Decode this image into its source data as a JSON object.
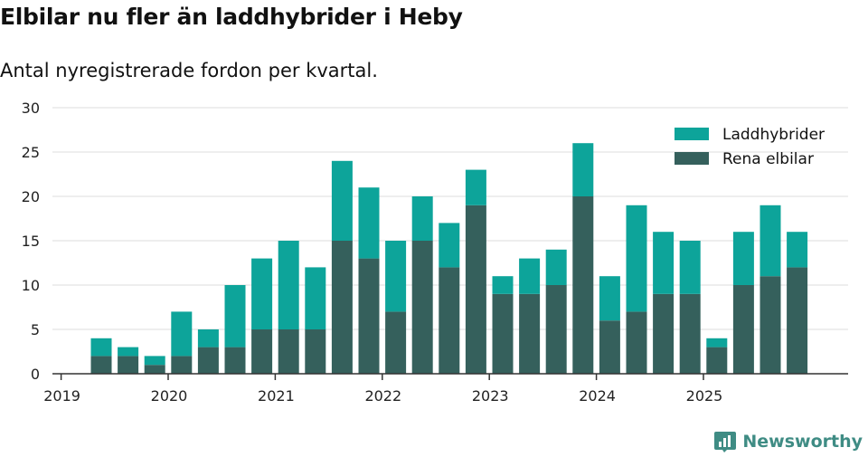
{
  "header": {
    "title": "Elbilar nu fler än laddhybrider i Heby",
    "subtitle": "Antal nyregistrerade fordon per kvartal."
  },
  "brand": {
    "name": "Newsworthy",
    "icon": "newsworthy-logo-icon",
    "color": "#3f8c84"
  },
  "chart_data": {
    "type": "bar",
    "stacked": true,
    "categories": [
      "2019 Q2",
      "2019 Q3",
      "2019 Q4",
      "2020 Q1",
      "2020 Q2",
      "2020 Q3",
      "2020 Q4",
      "2021 Q1",
      "2021 Q2",
      "2021 Q3",
      "2021 Q4",
      "2022 Q1",
      "2022 Q2",
      "2022 Q3",
      "2022 Q4",
      "2023 Q1",
      "2023 Q2",
      "2023 Q3",
      "2023 Q4",
      "2024 Q1",
      "2024 Q2",
      "2024 Q3",
      "2024 Q4",
      "2025 Q1",
      "2025 Q2",
      "2025 Q3",
      "2025 Q4"
    ],
    "series": [
      {
        "name": "Rena elbilar",
        "color": "#35605c",
        "values": [
          2,
          2,
          1,
          2,
          3,
          3,
          5,
          5,
          5,
          15,
          13,
          7,
          15,
          12,
          19,
          9,
          9,
          10,
          20,
          6,
          7,
          9,
          9,
          3,
          10,
          11,
          12
        ]
      },
      {
        "name": "Laddhybrider",
        "color": "#0da49a",
        "values": [
          2,
          1,
          1,
          5,
          2,
          7,
          8,
          10,
          7,
          9,
          8,
          8,
          5,
          5,
          4,
          2,
          4,
          4,
          6,
          5,
          12,
          7,
          6,
          1,
          6,
          8,
          4
        ]
      }
    ],
    "legend": [
      "Laddhybrider",
      "Rena elbilar"
    ],
    "legend_position": "top-right",
    "ylim": [
      0,
      30
    ],
    "yticks": [
      0,
      5,
      10,
      15,
      20,
      25,
      30
    ],
    "xticks": [
      "2019",
      "2020",
      "2021",
      "2022",
      "2023",
      "2024",
      "2025"
    ],
    "grid": true
  }
}
